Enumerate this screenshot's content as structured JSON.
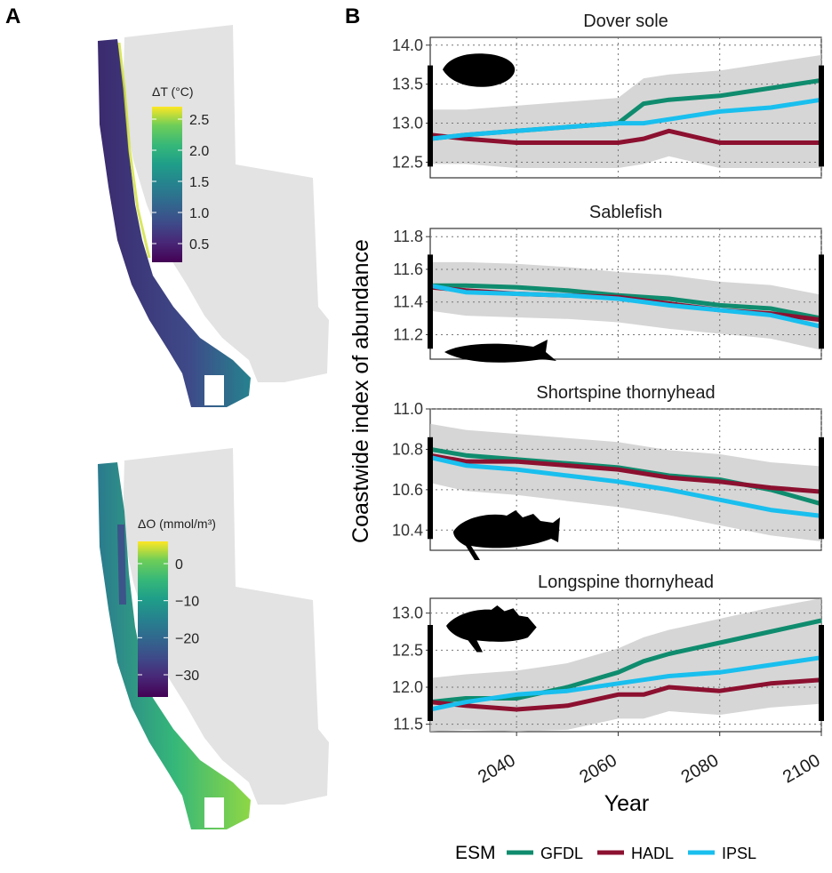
{
  "panel_labels": {
    "a": "A",
    "b": "B"
  },
  "maps": [
    {
      "colorbar_title": "ΔT (°C)",
      "colorbar_ticks": [
        "2.5",
        "2.0",
        "1.5",
        "1.0",
        "0.5"
      ],
      "colorbar_range": [
        0.2,
        2.7
      ]
    },
    {
      "colorbar_title": "ΔO (mmol/m³)",
      "colorbar_ticks": [
        "0",
        "−10",
        "−20",
        "−30"
      ],
      "colorbar_range": [
        -36,
        6
      ]
    }
  ],
  "colors": {
    "GFDL": "#0f8c6e",
    "HADL": "#8c1030",
    "IPSL": "#19bfee",
    "ribbon": "#c8c8c8"
  },
  "chart_data": {
    "type": "line",
    "xlabel": "Year",
    "ylabel": "Coastwide index of abundance",
    "x_ticks": [
      "2040",
      "2060",
      "2080",
      "2100"
    ],
    "xlim": [
      2023,
      2100
    ],
    "legend": {
      "title": "ESM",
      "entries": [
        "GFDL",
        "HADL",
        "IPSL"
      ],
      "position": "bottom"
    },
    "facets": [
      {
        "title": "Dover sole",
        "ylim": [
          12.3,
          14.1
        ],
        "yticks": [
          "14.0",
          "13.5",
          "13.0",
          "12.5"
        ],
        "x": [
          2023,
          2030,
          2040,
          2050,
          2060,
          2065,
          2070,
          2080,
          2090,
          2100
        ],
        "series": [
          {
            "name": "GFDL",
            "values": [
              12.8,
              12.85,
              12.9,
              12.95,
              13.0,
              13.25,
              13.3,
              13.35,
              13.45,
              13.55
            ]
          },
          {
            "name": "HADL",
            "values": [
              12.85,
              12.8,
              12.75,
              12.75,
              12.75,
              12.8,
              12.9,
              12.75,
              12.75,
              12.75
            ]
          },
          {
            "name": "IPSL",
            "values": [
              12.8,
              12.85,
              12.9,
              12.95,
              13.0,
              13.0,
              13.05,
              13.15,
              13.2,
              13.3
            ]
          }
        ]
      },
      {
        "title": "Sablefish",
        "ylim": [
          11.05,
          11.85
        ],
        "yticks": [
          "11.8",
          "11.6",
          "11.4",
          "11.2"
        ],
        "x": [
          2023,
          2030,
          2040,
          2050,
          2060,
          2070,
          2080,
          2090,
          2100
        ],
        "series": [
          {
            "name": "GFDL",
            "values": [
              11.5,
              11.5,
              11.49,
              11.47,
              11.44,
              11.42,
              11.38,
              11.36,
              11.3
            ]
          },
          {
            "name": "HADL",
            "values": [
              11.49,
              11.47,
              11.45,
              11.44,
              11.43,
              11.39,
              11.35,
              11.33,
              11.29
            ]
          },
          {
            "name": "IPSL",
            "values": [
              11.5,
              11.46,
              11.45,
              11.44,
              11.42,
              11.38,
              11.35,
              11.32,
              11.25
            ]
          }
        ]
      },
      {
        "title": "Shortspine thornyhead",
        "ylim": [
          10.3,
          11.0
        ],
        "yticks": [
          "11.0",
          "10.8",
          "10.6",
          "10.4"
        ],
        "x": [
          2023,
          2030,
          2040,
          2050,
          2060,
          2070,
          2080,
          2090,
          2100
        ],
        "series": [
          {
            "name": "GFDL",
            "values": [
              10.8,
              10.77,
              10.75,
              10.73,
              10.71,
              10.67,
              10.65,
              10.6,
              10.53
            ]
          },
          {
            "name": "HADL",
            "values": [
              10.77,
              10.74,
              10.74,
              10.72,
              10.7,
              10.66,
              10.64,
              10.61,
              10.59
            ]
          },
          {
            "name": "IPSL",
            "values": [
              10.76,
              10.72,
              10.7,
              10.67,
              10.64,
              10.6,
              10.55,
              10.5,
              10.47
            ]
          }
        ]
      },
      {
        "title": "Longspine thornyhead",
        "ylim": [
          11.4,
          13.2
        ],
        "yticks": [
          "13.0",
          "12.5",
          "12.0",
          "11.5"
        ],
        "x": [
          2023,
          2030,
          2040,
          2050,
          2060,
          2065,
          2070,
          2080,
          2090,
          2100
        ],
        "series": [
          {
            "name": "GFDL",
            "values": [
              11.8,
              11.85,
              11.85,
              12.0,
              12.2,
              12.35,
              12.45,
              12.6,
              12.75,
              12.9
            ]
          },
          {
            "name": "HADL",
            "values": [
              11.8,
              11.75,
              11.7,
              11.75,
              11.9,
              11.9,
              12.0,
              11.95,
              12.05,
              12.1
            ]
          },
          {
            "name": "IPSL",
            "values": [
              11.7,
              11.8,
              11.9,
              11.95,
              12.05,
              12.1,
              12.15,
              12.2,
              12.3,
              12.4
            ]
          }
        ]
      }
    ]
  }
}
